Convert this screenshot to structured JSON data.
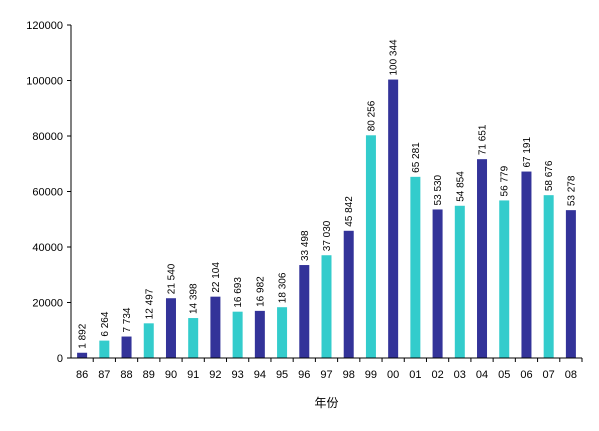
{
  "chart_data": {
    "type": "bar",
    "title": "",
    "xlabel": "年份",
    "ylabel": "",
    "ylim": [
      0,
      120000
    ],
    "yticks": [
      0,
      20000,
      40000,
      60000,
      80000,
      100000,
      120000
    ],
    "grid": false,
    "legend": "none",
    "categories": [
      "86",
      "87",
      "88",
      "89",
      "90",
      "91",
      "92",
      "93",
      "94",
      "95",
      "96",
      "97",
      "98",
      "99",
      "00",
      "01",
      "02",
      "03",
      "04",
      "05",
      "06",
      "07",
      "08"
    ],
    "values": [
      1892,
      6264,
      7734,
      12497,
      21540,
      14398,
      22104,
      16693,
      16982,
      18306,
      33498,
      37030,
      45842,
      80256,
      100344,
      65281,
      53530,
      54854,
      71651,
      56779,
      67191,
      58676,
      53278
    ],
    "data_labels": [
      "1 892",
      "6 264",
      "7 734",
      "12 497",
      "21 540",
      "14 398",
      "22 104",
      "16 693",
      "16 982",
      "18 306",
      "33 498",
      "37 030",
      "45 842",
      "80 256",
      "100 344",
      "65 281",
      "53 530",
      "54 854",
      "71 651",
      "56 779",
      "67 191",
      "58 676",
      "53 278"
    ],
    "bar_colors": [
      "navy",
      "teal",
      "navy",
      "teal",
      "navy",
      "teal",
      "navy",
      "teal",
      "navy",
      "teal",
      "navy",
      "teal",
      "navy",
      "teal",
      "navy",
      "teal",
      "navy",
      "teal",
      "navy",
      "teal",
      "navy",
      "teal",
      "navy"
    ],
    "colors": {
      "navy": "#333399",
      "teal": "#33CCCC"
    }
  }
}
